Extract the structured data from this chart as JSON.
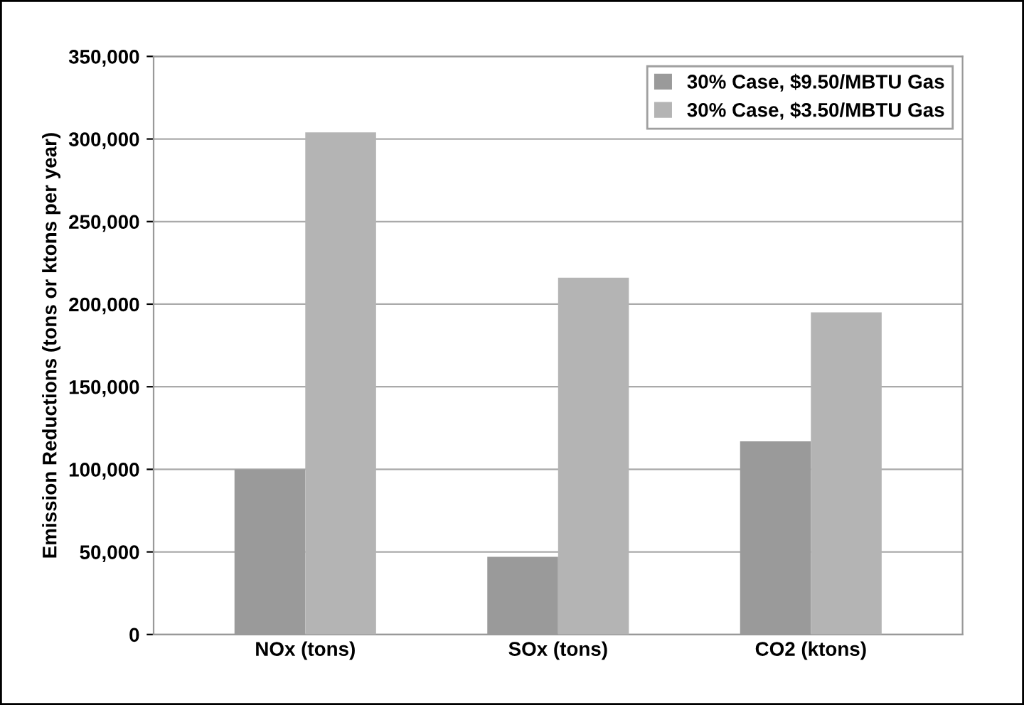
{
  "chart_data": {
    "type": "bar",
    "ylabel": "Emission Reductions (tons or ktons per year)",
    "categories": [
      "NOx (tons)",
      "SOx (tons)",
      "CO2 (ktons)"
    ],
    "series": [
      {
        "name": "30% Case, $9.50/MBTU Gas",
        "color": "#9a9a9a",
        "values": [
          100000,
          47000,
          117000
        ]
      },
      {
        "name": "30% Case, $3.50/MBTU Gas",
        "color": "#b4b4b4",
        "values": [
          304000,
          216000,
          195000
        ]
      }
    ],
    "ylim": [
      0,
      350000
    ],
    "yticks": [
      {
        "value": 0,
        "label": "0"
      },
      {
        "value": 50000,
        "label": "50,000"
      },
      {
        "value": 100000,
        "label": "100,000"
      },
      {
        "value": 150000,
        "label": "150,000"
      },
      {
        "value": 200000,
        "label": "200,000"
      },
      {
        "value": 250000,
        "label": "250,000"
      },
      {
        "value": 300000,
        "label": "300,000"
      },
      {
        "value": 350000,
        "label": "350,000"
      }
    ],
    "grid": "y",
    "legend": "top right"
  }
}
